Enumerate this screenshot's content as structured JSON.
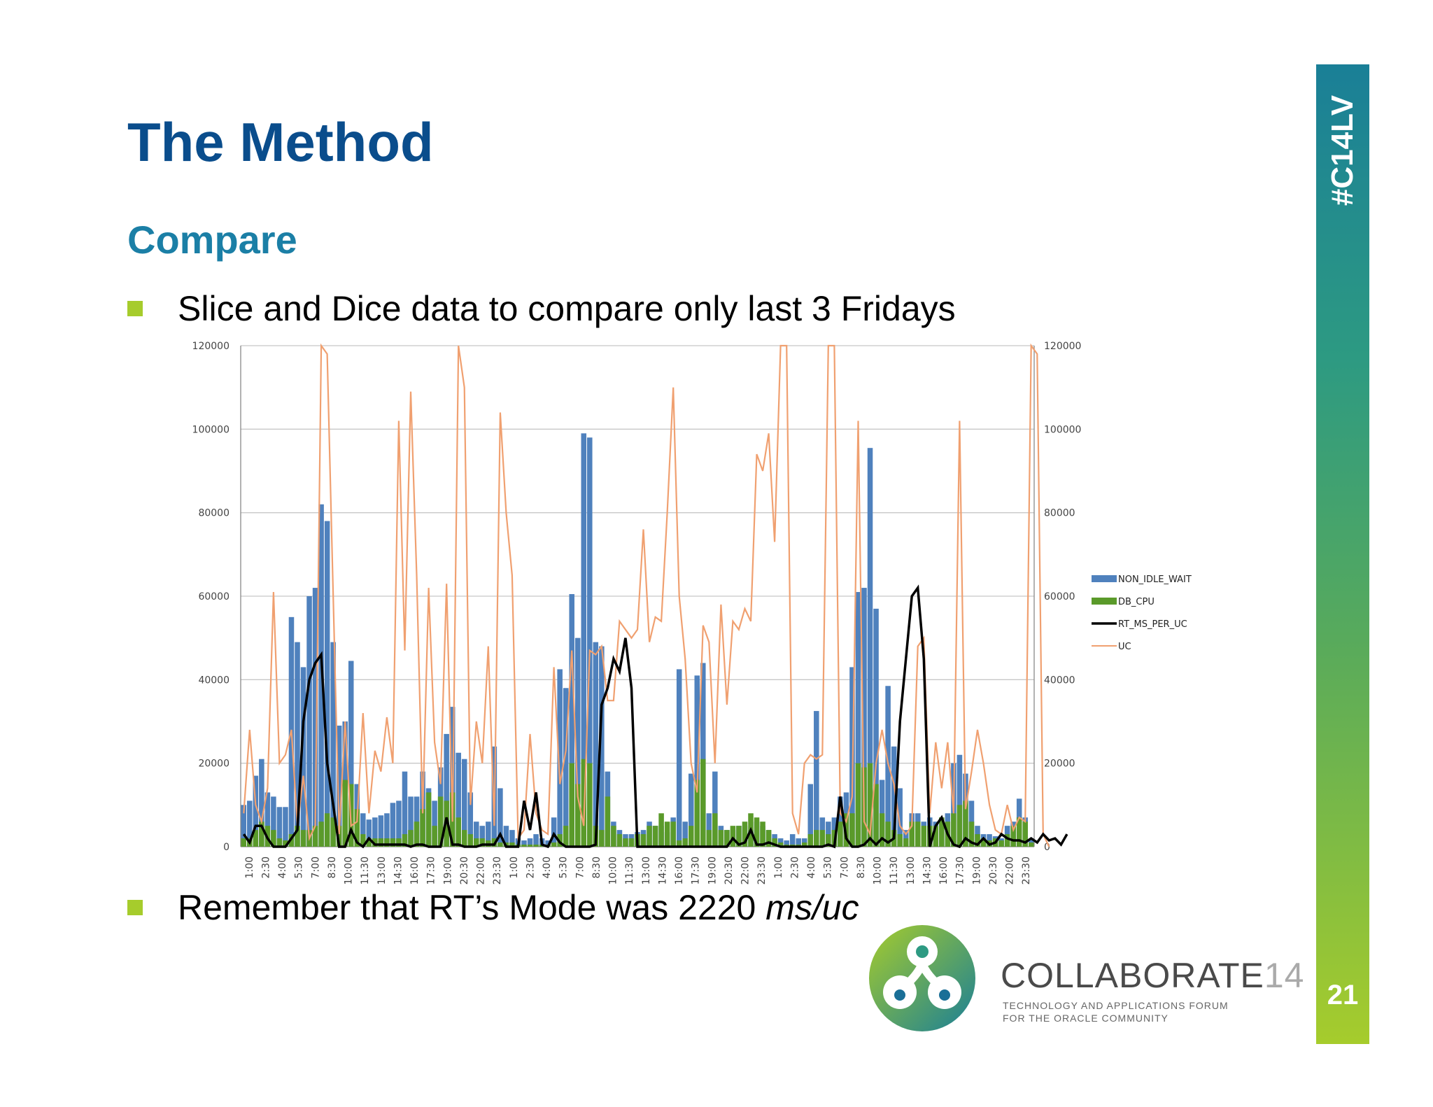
{
  "slide": {
    "title": "The Method",
    "subtitle": "Compare",
    "bullet1": "Slice and Dice data to compare only last 3 Fridays",
    "bullet2_prefix": "Remember that RT’s Mode was 2220 ",
    "bullet2_unit": "ms/uc",
    "hashtag": "#C14LV",
    "page_number": "21",
    "brand_name": "COLLABORATE",
    "brand_num": "14",
    "tagline_line1": "TECHNOLOGY AND APPLICATIONS FORUM",
    "tagline_line2": "FOR THE ORACLE COMMUNITY"
  },
  "colors": {
    "title": "#0a4d8c",
    "subtitle": "#1b7fa6",
    "bullet": "#a6cc2c",
    "non_idle_wait": "#4f81bd",
    "db_cpu": "#5a9a2a",
    "rt_ms_per_uc": "#000000",
    "uc": "#f0a070"
  },
  "chart_data": {
    "type": "bar",
    "y_left": [
      0,
      120000
    ],
    "y_right": [
      0,
      120000
    ],
    "y_ticks": [
      0,
      20000,
      40000,
      60000,
      80000,
      100000,
      120000
    ],
    "x_labels": [
      "1:00",
      "2:30",
      "4:00",
      "5:30",
      "7:00",
      "8:30",
      "10:00",
      "11:30",
      "13:00",
      "14:30",
      "16:00",
      "17:30",
      "19:00",
      "20:30",
      "22:00",
      "23:30",
      "1:00",
      "2:30",
      "4:00",
      "5:30",
      "7:00",
      "8:30",
      "10:00",
      "11:30",
      "13:00",
      "14:30",
      "16:00",
      "17:30",
      "19:00",
      "20:30",
      "22:00",
      "23:30",
      "1:00",
      "2:30",
      "4:00",
      "5:30",
      "7:00",
      "8:30",
      "10:00",
      "11:30",
      "13:00",
      "14:30",
      "16:00",
      "17:30",
      "19:00",
      "20:30",
      "22:00",
      "23:30"
    ],
    "legend_position": "right",
    "series": [
      {
        "name": "NON_IDLE_WAIT",
        "kind": "bar",
        "values": [
          10000,
          11000,
          17000,
          21000,
          13000,
          12000,
          9500,
          9500,
          55000,
          49000,
          43000,
          60000,
          62000,
          82000,
          78000,
          49000,
          29000,
          30000,
          44500,
          15000,
          8000,
          6500,
          7000,
          7500,
          8000,
          10500,
          11000,
          18000,
          12000,
          12000,
          18000,
          14000,
          11000,
          19000,
          27000,
          33500,
          22500,
          21000,
          13000,
          6000,
          5000,
          6000,
          24000,
          14000,
          5000,
          4000,
          2000,
          1500,
          2000,
          3000,
          2000,
          1500,
          7000,
          42500,
          38000,
          60500,
          50000,
          99000,
          98000,
          49000,
          48000,
          18000,
          6000,
          4000,
          3000,
          3000,
          3500,
          4000,
          6000,
          5000,
          5000,
          3500,
          7000,
          42500,
          6000,
          17500,
          41000,
          44000,
          8000,
          18000,
          5000,
          4000,
          4000,
          5000,
          5000,
          4000,
          6000,
          5000,
          4000,
          3000,
          2000,
          1500,
          3000,
          2000,
          2000,
          15000,
          32500,
          7000,
          6000,
          7000,
          12000,
          13000,
          43000,
          61000,
          62000,
          95500,
          57000,
          16000,
          38500,
          24000,
          14000,
          4000,
          8000,
          8000,
          6000,
          7000,
          6000,
          7000,
          8000,
          20000,
          22000,
          17500,
          11000,
          5000,
          3000,
          3000,
          2500,
          2000,
          5000,
          6000,
          11500,
          7000,
          2000
        ]
      },
      {
        "name": "DB_CPU",
        "kind": "bar",
        "values": [
          2000,
          2000,
          4000,
          6000,
          5000,
          4000,
          2000,
          1500,
          3000,
          5000,
          4000,
          4000,
          5000,
          6000,
          8000,
          7000,
          5000,
          16000,
          15000,
          9000,
          3000,
          2000,
          2000,
          2000,
          2000,
          2000,
          2000,
          3000,
          4000,
          6000,
          9000,
          13000,
          5000,
          12000,
          11000,
          13000,
          7000,
          4000,
          3000,
          2000,
          2000,
          1500,
          2000,
          1000,
          1000,
          1000,
          500,
          500,
          500,
          500,
          500,
          500,
          1000,
          3000,
          5000,
          20000,
          15000,
          21000,
          20000,
          5000,
          4000,
          12000,
          5000,
          3000,
          2000,
          2000,
          3000,
          3000,
          5000,
          5000,
          8000,
          6000,
          6000,
          1500,
          2000,
          5000,
          16000,
          21000,
          4000,
          8000,
          4000,
          4000,
          5000,
          5000,
          6000,
          8000,
          7000,
          6000,
          4000,
          2000,
          1000,
          500,
          500,
          500,
          1000,
          3000,
          4000,
          4000,
          3000,
          4000,
          6000,
          8000,
          8000,
          20000,
          19000,
          20000,
          15000,
          8000,
          6000,
          4000,
          3000,
          2000,
          6000,
          6000,
          5000,
          5000,
          5000,
          7000,
          6000,
          8000,
          10000,
          11000,
          6000,
          3000,
          2000,
          1500,
          2000,
          1500,
          3000,
          5000,
          7000,
          6000,
          1000
        ]
      },
      {
        "name": "RT_MS_PER_UC",
        "kind": "line",
        "values": [
          3000,
          1000,
          5000,
          5000,
          2000,
          0,
          0,
          0,
          2000,
          4000,
          30000,
          40000,
          44000,
          46000,
          20000,
          10000,
          0,
          0,
          4000,
          1000,
          0,
          2000,
          500,
          500,
          500,
          500,
          500,
          500,
          0,
          500,
          500,
          0,
          0,
          0,
          7000,
          500,
          500,
          0,
          0,
          0,
          500,
          500,
          500,
          3000,
          0,
          0,
          0,
          11000,
          4000,
          13000,
          500,
          0,
          3000,
          1000,
          0,
          0,
          0,
          0,
          0,
          500,
          34000,
          38000,
          45000,
          42000,
          50000,
          38000,
          0,
          0,
          0,
          0,
          0,
          0,
          0,
          0,
          0,
          0,
          0,
          0,
          0,
          0,
          0,
          0,
          2000,
          500,
          1000,
          4000,
          500,
          500,
          1000,
          500,
          0,
          0,
          0,
          0,
          0,
          0,
          0,
          0,
          500,
          0,
          12000,
          2000,
          0,
          0,
          500,
          2000,
          500,
          2000,
          1000,
          2000,
          30000,
          45000,
          60000,
          62000,
          45000,
          0,
          5000,
          7000,
          3000,
          500,
          0,
          2000,
          1000,
          500,
          2000,
          500,
          1000,
          3000,
          2000,
          1500,
          1500,
          1000,
          2000,
          1000,
          3000,
          1500,
          2000,
          500,
          3000
        ]
      },
      {
        "name": "UC",
        "kind": "line",
        "values": [
          8000,
          28000,
          10000,
          6000,
          14000,
          61000,
          20000,
          22000,
          28000,
          5000,
          17000,
          2000,
          5000,
          120000,
          118000,
          60000,
          3000,
          30000,
          5000,
          6000,
          32000,
          8000,
          23000,
          18000,
          31000,
          20000,
          102000,
          47000,
          109000,
          65000,
          8000,
          62000,
          25000,
          15000,
          63000,
          6000,
          120000,
          110000,
          10000,
          30000,
          20000,
          48000,
          5000,
          104000,
          80000,
          65000,
          2000,
          4000,
          27000,
          8000,
          4000,
          3000,
          43000,
          15000,
          23000,
          47000,
          12000,
          5000,
          47000,
          46000,
          48000,
          35000,
          35000,
          54000,
          52000,
          50000,
          52000,
          76000,
          49000,
          55000,
          54000,
          80000,
          110000,
          60000,
          45000,
          20000,
          13000,
          53000,
          49000,
          20000,
          58000,
          34000,
          54000,
          52000,
          57000,
          54000,
          94000,
          90000,
          99000,
          73000,
          120000,
          120000,
          8000,
          3000,
          20000,
          22000,
          21000,
          22000,
          120000,
          120000,
          8000,
          6000,
          12000,
          102000,
          6000,
          3000,
          20000,
          28000,
          20000,
          15000,
          5000,
          3000,
          5000,
          48000,
          50000,
          8000,
          25000,
          14000,
          25000,
          8000,
          102000,
          9000,
          18000,
          28000,
          20000,
          10000,
          4000,
          3000,
          10000,
          4000,
          7000,
          6000,
          120000,
          118000,
          3000,
          0
        ]
      }
    ]
  }
}
